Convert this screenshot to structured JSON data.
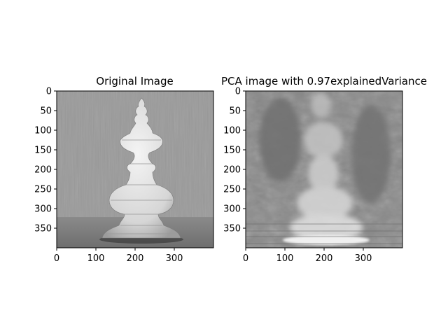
{
  "chart_data": [
    {
      "type": "image",
      "title": "Original Image",
      "xlabel": "",
      "ylabel": "",
      "xlim": [
        0,
        400
      ],
      "ylim": [
        400,
        0
      ],
      "xticks": [
        0,
        100,
        200,
        300
      ],
      "yticks": [
        0,
        50,
        100,
        150,
        200,
        250,
        300,
        350
      ],
      "content": "grayscale photo of a white chess bishop on a wooden table",
      "colormap": "gray"
    },
    {
      "type": "image",
      "title": "PCA image with 0.97explainedVariance",
      "xlabel": "",
      "ylabel": "",
      "xlim": [
        0,
        400
      ],
      "ylim": [
        400,
        0
      ],
      "xticks": [
        0,
        100,
        200,
        300
      ],
      "yticks": [
        0,
        50,
        100,
        150,
        200,
        250,
        300,
        350
      ],
      "content": "blurry PCA reconstruction of the chess bishop",
      "colormap": "gray"
    }
  ]
}
